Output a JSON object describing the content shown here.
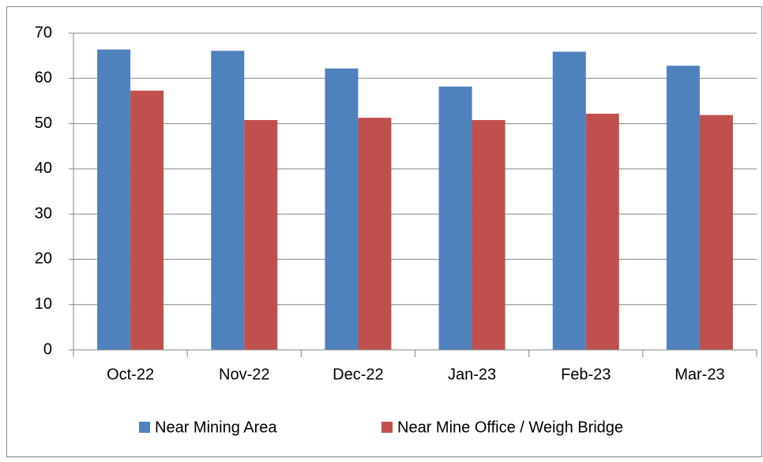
{
  "chart_data": {
    "type": "bar",
    "categories": [
      "Oct-22",
      "Nov-22",
      "Dec-22",
      "Jan-23",
      "Feb-23",
      "Mar-23"
    ],
    "series": [
      {
        "name": "Near Mining Area",
        "color": "#4f81bd",
        "values": [
          66.4,
          66.1,
          62.2,
          58.2,
          65.9,
          62.8
        ]
      },
      {
        "name": "Near Mine Office / Weigh Bridge",
        "color": "#c0504d",
        "values": [
          57.3,
          50.8,
          51.3,
          50.8,
          52.2,
          51.9
        ]
      }
    ],
    "ylim": [
      0,
      70
    ],
    "yticks": [
      0,
      10,
      20,
      30,
      40,
      50,
      60,
      70
    ],
    "grid": true,
    "legend": "bottom"
  }
}
